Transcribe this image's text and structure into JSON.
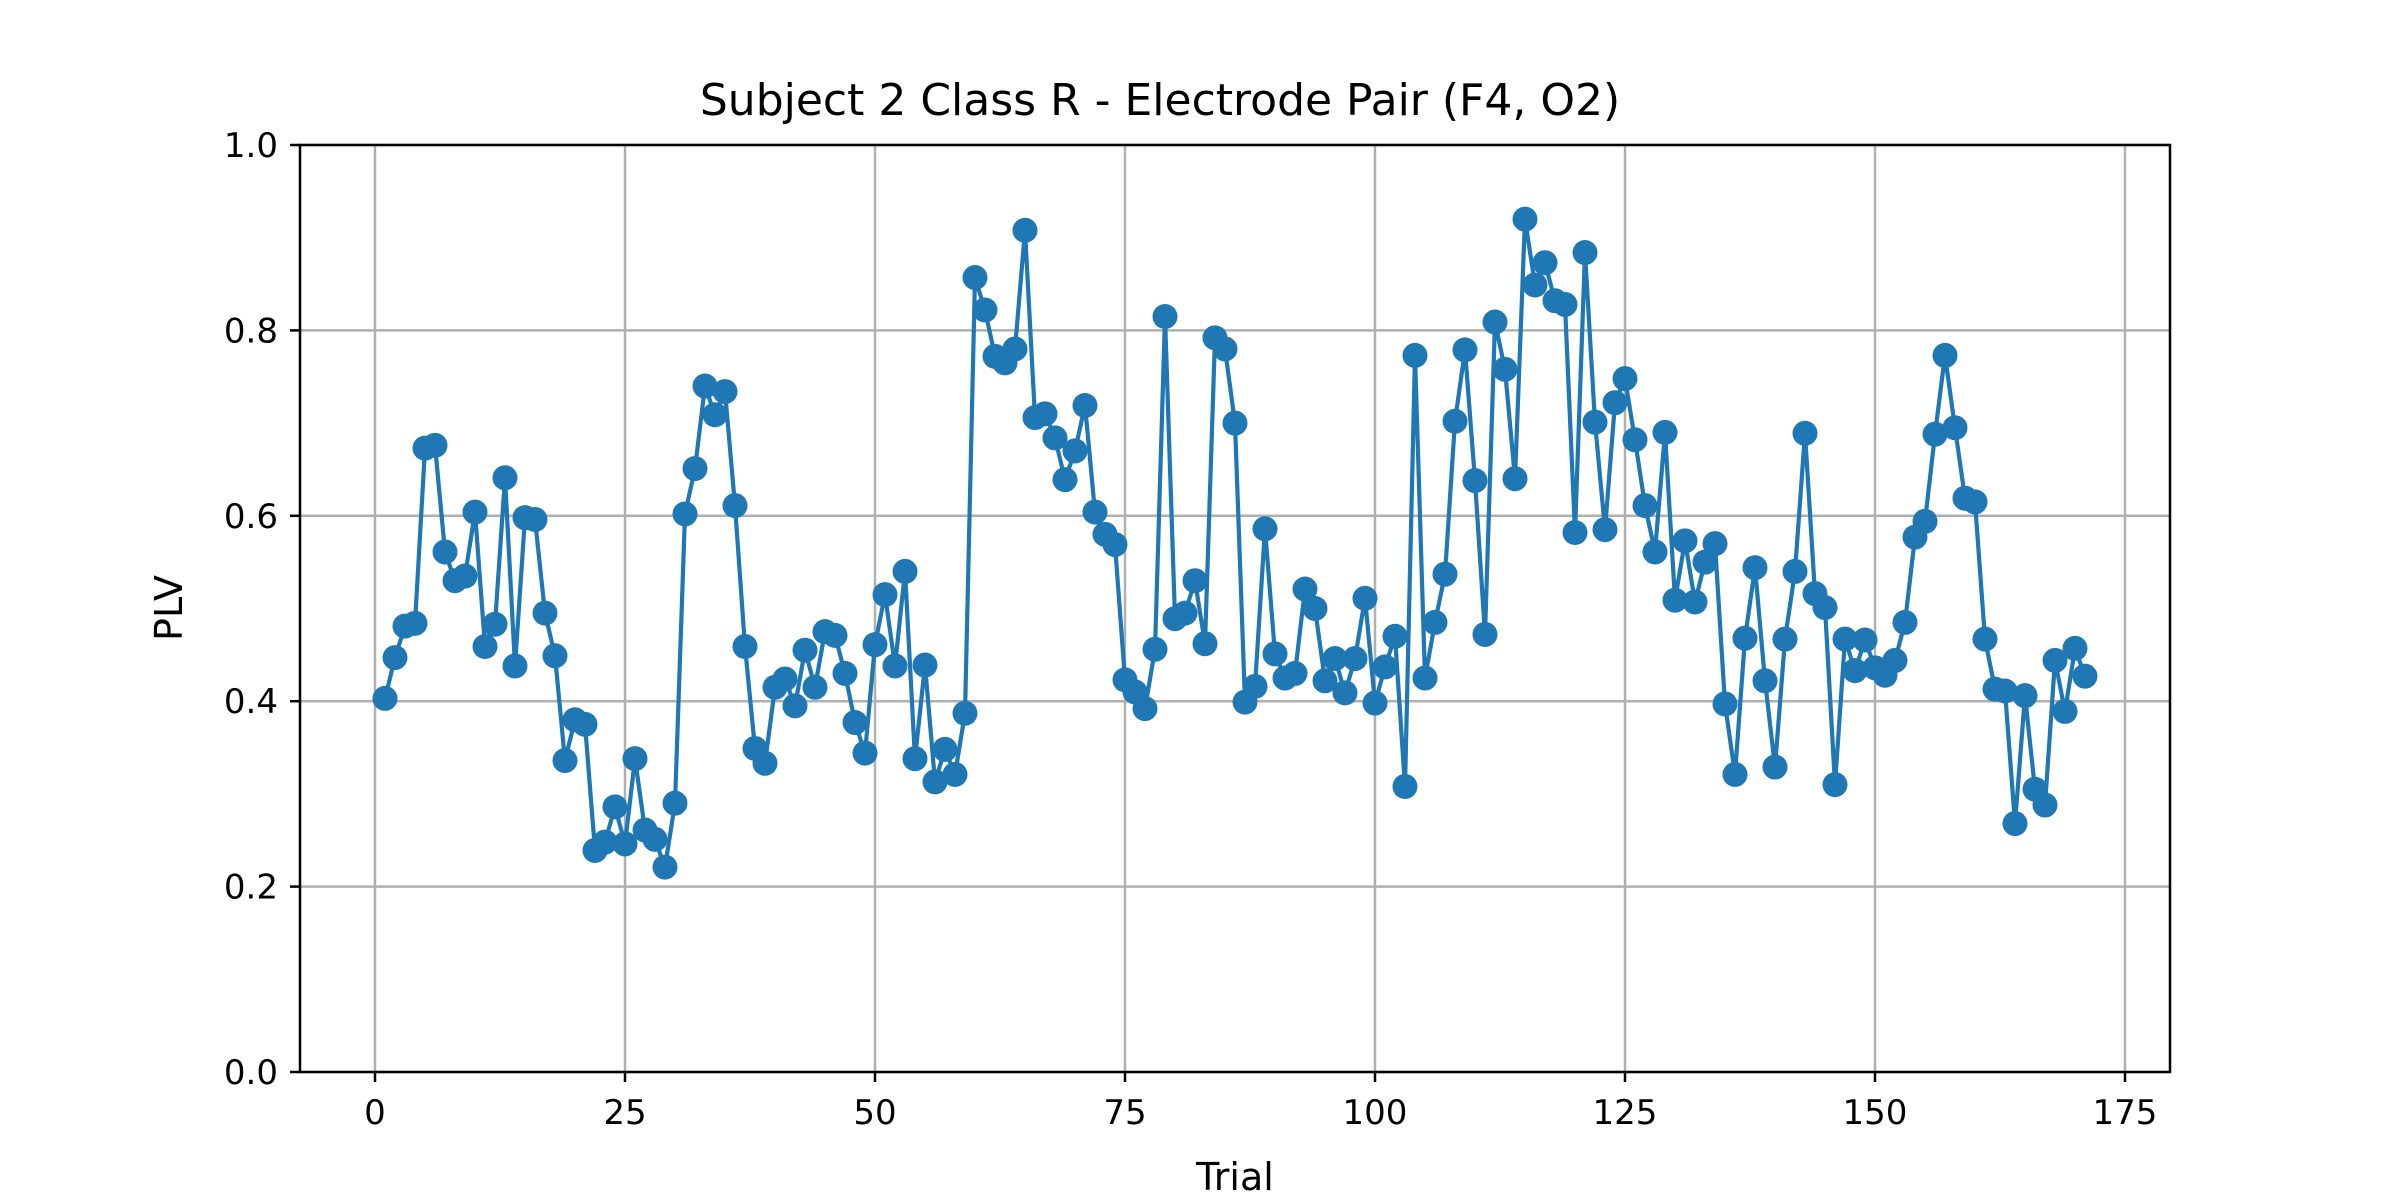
{
  "chart_data": {
    "type": "line",
    "title": "Subject 2 Class R - Electrode Pair (F4, O2)",
    "xlabel": "Trial",
    "ylabel": "PLV",
    "xlim": [
      -7.5,
      179.5
    ],
    "ylim": [
      0.0,
      1.0
    ],
    "xticks": [
      "0",
      "25",
      "50",
      "75",
      "100",
      "125",
      "150",
      "175"
    ],
    "yticks": [
      "0.0",
      "0.2",
      "0.4",
      "0.6",
      "0.8",
      "1.0"
    ],
    "grid": true,
    "series": [
      {
        "color": "#1f77b4",
        "marker": "circle",
        "x": [
          1,
          2,
          3,
          4,
          5,
          6,
          7,
          8,
          9,
          10,
          11,
          12,
          13,
          14,
          15,
          16,
          17,
          18,
          19,
          20,
          21,
          22,
          23,
          24,
          25,
          26,
          27,
          28,
          29,
          30,
          31,
          32,
          33,
          34,
          35,
          36,
          37,
          38,
          39,
          40,
          41,
          42,
          43,
          44,
          45,
          46,
          47,
          48,
          49,
          50,
          51,
          52,
          53,
          54,
          55,
          56,
          57,
          58,
          59,
          60,
          61,
          62,
          63,
          64,
          65,
          66,
          67,
          68,
          69,
          70,
          71,
          72,
          73,
          74,
          75,
          76,
          77,
          78,
          79,
          80,
          81,
          82,
          83,
          84,
          85,
          86,
          87,
          88,
          89,
          90,
          91,
          92,
          93,
          94,
          95,
          96,
          97,
          98,
          99,
          100,
          101,
          102,
          103,
          104,
          105,
          106,
          107,
          108,
          109,
          110,
          111,
          112,
          113,
          114,
          115,
          116,
          117,
          118,
          119,
          120,
          121,
          122,
          123,
          124,
          125,
          126,
          127,
          128,
          129,
          130,
          131,
          132,
          133,
          134,
          135,
          136,
          137,
          138,
          139,
          140,
          141,
          142,
          143,
          144,
          145,
          146,
          147,
          148,
          149,
          150,
          151,
          152,
          153,
          154,
          155,
          156,
          157,
          158,
          159,
          160,
          161,
          162,
          163,
          164,
          165,
          166,
          167,
          168,
          169,
          170,
          171
        ],
        "y": [
          0.403,
          0.447,
          0.481,
          0.484,
          0.673,
          0.676,
          0.561,
          0.53,
          0.535,
          0.604,
          0.459,
          0.483,
          0.641,
          0.438,
          0.598,
          0.596,
          0.495,
          0.449,
          0.336,
          0.38,
          0.375,
          0.239,
          0.248,
          0.286,
          0.246,
          0.338,
          0.261,
          0.251,
          0.221,
          0.29,
          0.602,
          0.651,
          0.74,
          0.709,
          0.734,
          0.611,
          0.459,
          0.349,
          0.333,
          0.415,
          0.424,
          0.395,
          0.455,
          0.415,
          0.475,
          0.471,
          0.43,
          0.377,
          0.344,
          0.461,
          0.515,
          0.438,
          0.54,
          0.338,
          0.439,
          0.313,
          0.348,
          0.321,
          0.387,
          0.857,
          0.822,
          0.772,
          0.765,
          0.78,
          0.908,
          0.706,
          0.71,
          0.684,
          0.639,
          0.67,
          0.719,
          0.604,
          0.58,
          0.569,
          0.423,
          0.41,
          0.392,
          0.456,
          0.815,
          0.489,
          0.495,
          0.53,
          0.462,
          0.792,
          0.78,
          0.7,
          0.399,
          0.416,
          0.586,
          0.451,
          0.425,
          0.43,
          0.521,
          0.5,
          0.422,
          0.446,
          0.409,
          0.446,
          0.511,
          0.398,
          0.437,
          0.47,
          0.308,
          0.773,
          0.425,
          0.485,
          0.537,
          0.702,
          0.779,
          0.638,
          0.472,
          0.809,
          0.758,
          0.64,
          0.92,
          0.849,
          0.873,
          0.832,
          0.828,
          0.582,
          0.884,
          0.701,
          0.585,
          0.722,
          0.748,
          0.682,
          0.611,
          0.561,
          0.69,
          0.509,
          0.573,
          0.507,
          0.55,
          0.57,
          0.397,
          0.321,
          0.468,
          0.544,
          0.422,
          0.329,
          0.467,
          0.54,
          0.689,
          0.516,
          0.501,
          0.31,
          0.467,
          0.433,
          0.466,
          0.436,
          0.428,
          0.444,
          0.485,
          0.577,
          0.594,
          0.688,
          0.773,
          0.695,
          0.619,
          0.615,
          0.467,
          0.413,
          0.411,
          0.268,
          0.406,
          0.305,
          0.288,
          0.444,
          0.389,
          0.457,
          0.427
        ]
      }
    ]
  }
}
